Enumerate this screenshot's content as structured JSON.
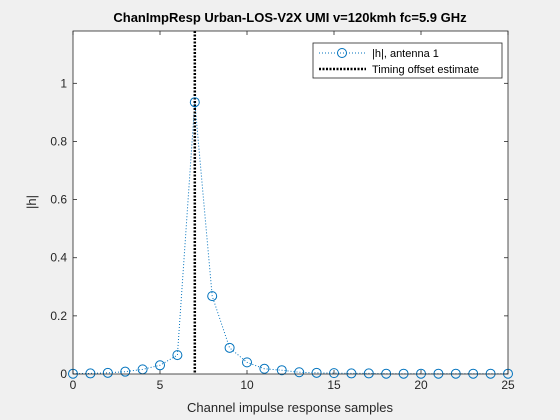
{
  "chart_data": {
    "type": "line",
    "title": "ChanImpResp Urban-LOS-V2X UMI v=120kmh fc=5.9 GHz",
    "xlabel": "Channel impulse response samples",
    "ylabel": "|h|",
    "xlim": [
      0,
      25
    ],
    "ylim": [
      0,
      1.18
    ],
    "xticks": [
      0,
      5,
      10,
      15,
      20,
      25
    ],
    "yticks": [
      0,
      0.2,
      0.4,
      0.6,
      0.8,
      1
    ],
    "xtick_labels": [
      "0",
      "5",
      "10",
      "15",
      "20",
      "25"
    ],
    "ytick_labels": [
      "0",
      "0.2",
      "0.4",
      "0.6",
      "0.8",
      "1"
    ],
    "legend_position": "top-right",
    "grid": false,
    "series": [
      {
        "name": "|h|, antenna 1",
        "style": "dotted line with circle markers",
        "color": "#0072bd",
        "x": [
          0,
          1,
          2,
          3,
          4,
          5,
          6,
          7,
          8,
          9,
          10,
          11,
          12,
          13,
          14,
          15,
          16,
          17,
          18,
          19,
          20,
          21,
          22,
          23,
          24,
          25
        ],
        "y": [
          0.001,
          0.002,
          0.004,
          0.008,
          0.016,
          0.03,
          0.065,
          0.935,
          0.268,
          0.09,
          0.04,
          0.018,
          0.013,
          0.006,
          0.004,
          0.003,
          0.002,
          0.002,
          0.001,
          0.001,
          0.001,
          0.001,
          0.001,
          0.001,
          0.001,
          0.001
        ]
      },
      {
        "name": "Timing offset estimate",
        "style": "vertical dotted line",
        "color": "#000000",
        "x": 7
      }
    ]
  }
}
